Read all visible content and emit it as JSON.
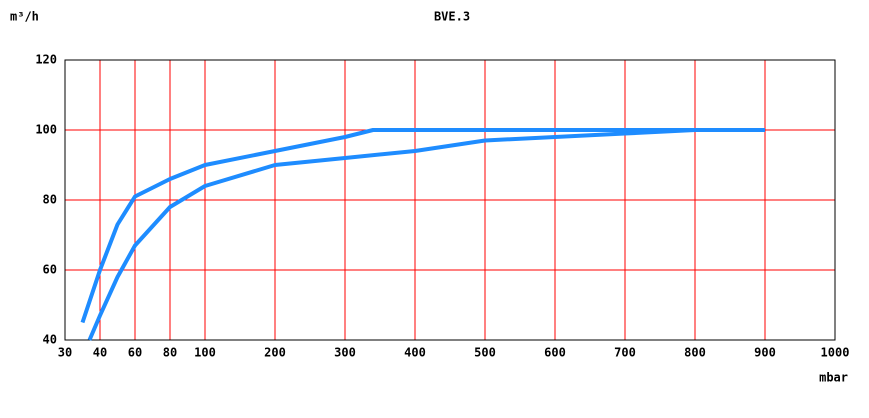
{
  "chart_data": {
    "type": "line",
    "title": "BVE.3",
    "y_label": "m³/h",
    "x_label": "mbar",
    "xlim": [
      30,
      1000
    ],
    "xticks": [
      30,
      40,
      60,
      80,
      100,
      200,
      300,
      400,
      500,
      600,
      700,
      800,
      900,
      1000
    ],
    "ylim": [
      40,
      120
    ],
    "yticks": [
      40,
      60,
      80,
      100,
      120
    ],
    "grid": true,
    "series": [
      {
        "color": "#1e8cff",
        "x": [
          35,
          40,
          50,
          60,
          80,
          100,
          200,
          300,
          340,
          500,
          700,
          900
        ],
        "values": [
          45,
          60,
          73,
          81,
          86,
          90,
          94,
          98,
          100,
          100,
          100,
          100
        ]
      },
      {
        "color": "#1e8cff",
        "x": [
          37,
          40,
          50,
          60,
          80,
          100,
          200,
          300,
          400,
          500,
          600,
          700,
          800,
          900
        ],
        "values": [
          40,
          47,
          58,
          67,
          78,
          84,
          90,
          92,
          94,
          97,
          98,
          99,
          100,
          100
        ]
      }
    ]
  }
}
